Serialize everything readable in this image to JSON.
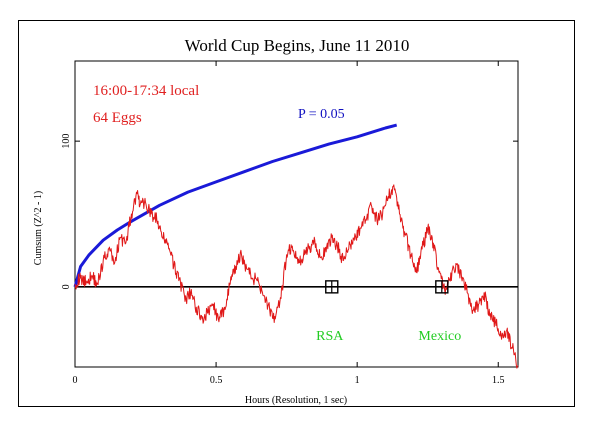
{
  "chart_data": {
    "type": "line",
    "title": "World Cup Begins, June 11 2010",
    "xlabel": "Hours (Resolution, 1 sec)",
    "ylabel": "Cumsum (Z^2 - 1)",
    "xlim": [
      0,
      1.57
    ],
    "ylim": [
      -55,
      155
    ],
    "x_ticks": [
      0,
      0.5,
      1,
      1.5
    ],
    "y_ticks": [
      0,
      100
    ],
    "annotations": {
      "time": "16:00-17:34 local",
      "eggs": "64 Eggs",
      "p_label": "P = 0.05",
      "events": [
        {
          "label": "RSA",
          "x": 0.91
        },
        {
          "label": "Mexico",
          "x": 1.3
        }
      ]
    },
    "series": [
      {
        "color": "#1a1ad8",
        "x": [
          0,
          0.02,
          0.05,
          0.1,
          0.15,
          0.2,
          0.3,
          0.4,
          0.5,
          0.6,
          0.7,
          0.8,
          0.9,
          1.0,
          1.1,
          1.14
        ],
        "values": [
          0,
          14,
          22,
          32,
          39,
          45,
          56,
          65,
          72,
          79,
          86,
          92,
          98,
          103,
          109,
          111
        ]
      },
      {
        "color": "#e01818",
        "x": [
          0,
          0.02,
          0.04,
          0.06,
          0.08,
          0.1,
          0.12,
          0.14,
          0.16,
          0.18,
          0.2,
          0.22,
          0.23,
          0.25,
          0.27,
          0.29,
          0.31,
          0.33,
          0.35,
          0.37,
          0.39,
          0.41,
          0.43,
          0.45,
          0.47,
          0.49,
          0.51,
          0.53,
          0.55,
          0.57,
          0.59,
          0.61,
          0.63,
          0.65,
          0.67,
          0.69,
          0.71,
          0.73,
          0.75,
          0.77,
          0.79,
          0.81,
          0.83,
          0.85,
          0.87,
          0.89,
          0.91,
          0.93,
          0.95,
          0.97,
          0.99,
          1.01,
          1.03,
          1.05,
          1.07,
          1.09,
          1.11,
          1.13,
          1.15,
          1.17,
          1.19,
          1.21,
          1.23,
          1.25,
          1.27,
          1.29,
          1.31,
          1.33,
          1.35,
          1.37,
          1.39,
          1.41,
          1.43,
          1.45,
          1.47,
          1.49,
          1.51,
          1.53,
          1.55,
          1.57
        ],
        "values": [
          2,
          6,
          3,
          8,
          2,
          18,
          26,
          16,
          34,
          30,
          50,
          64,
          56,
          58,
          50,
          46,
          34,
          30,
          14,
          6,
          -10,
          -4,
          -14,
          -22,
          -18,
          -12,
          -24,
          -14,
          2,
          14,
          22,
          12,
          6,
          4,
          -6,
          -16,
          -22,
          -8,
          22,
          28,
          16,
          22,
          26,
          32,
          20,
          24,
          34,
          28,
          18,
          26,
          32,
          40,
          46,
          56,
          46,
          50,
          62,
          70,
          50,
          36,
          22,
          10,
          26,
          40,
          30,
          10,
          -2,
          4,
          16,
          6,
          -4,
          -16,
          -12,
          -4,
          -20,
          -24,
          -34,
          -30,
          -42,
          -54
        ]
      }
    ]
  }
}
